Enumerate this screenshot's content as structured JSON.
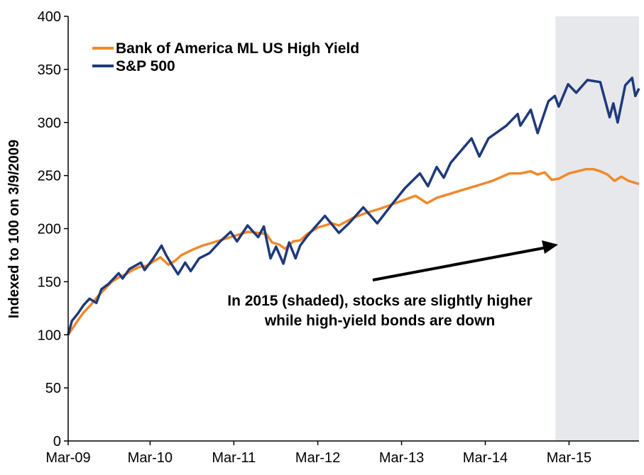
{
  "chart_data": {
    "type": "line",
    "title": "",
    "xlabel": "",
    "ylabel": "Indexed to 100 on 3/9/2009",
    "ylim": [
      0,
      400
    ],
    "yticks": [
      0,
      50,
      100,
      150,
      200,
      250,
      300,
      350,
      400
    ],
    "xlim": [
      "2009-03-09",
      "2015-12-31"
    ],
    "xtick_labels": [
      "Mar-09",
      "Mar-10",
      "Mar-11",
      "Mar-12",
      "Mar-13",
      "Mar-14",
      "Mar-15"
    ],
    "xtick_dates": [
      "2009-03-01",
      "2010-03-01",
      "2011-03-01",
      "2012-03-01",
      "2013-03-01",
      "2014-03-01",
      "2015-03-01"
    ],
    "grid": false,
    "legend_position": "top-left",
    "shaded_region": {
      "start": "2015-01-01",
      "end": "2015-12-31",
      "color": "#e7e8ec"
    },
    "annotation": {
      "lines": [
        "In 2015 (shaded), stocks are slightly higher",
        "while high-yield bonds are down"
      ]
    },
    "series": [
      {
        "name": "Bank of America ML US High Yield",
        "color": "#f0892b",
        "points": [
          [
            "2009-03-09",
            100
          ],
          [
            "2009-04-15",
            112
          ],
          [
            "2009-05-15",
            121
          ],
          [
            "2009-06-15",
            128
          ],
          [
            "2009-07-15",
            136
          ],
          [
            "2009-08-15",
            143
          ],
          [
            "2009-09-15",
            150
          ],
          [
            "2009-10-15",
            154
          ],
          [
            "2009-11-15",
            157
          ],
          [
            "2009-12-15",
            161
          ],
          [
            "2010-01-15",
            164
          ],
          [
            "2010-02-15",
            165
          ],
          [
            "2010-03-15",
            169
          ],
          [
            "2010-04-15",
            173
          ],
          [
            "2010-05-20",
            166
          ],
          [
            "2010-06-20",
            170
          ],
          [
            "2010-07-15",
            175
          ],
          [
            "2010-09-01",
            180
          ],
          [
            "2010-10-15",
            184
          ],
          [
            "2010-12-01",
            187
          ],
          [
            "2011-01-15",
            190
          ],
          [
            "2011-03-01",
            193
          ],
          [
            "2011-05-01",
            197
          ],
          [
            "2011-06-15",
            196
          ],
          [
            "2011-07-20",
            195
          ],
          [
            "2011-08-15",
            187
          ],
          [
            "2011-09-15",
            185
          ],
          [
            "2011-10-10",
            181
          ],
          [
            "2011-11-15",
            188
          ],
          [
            "2011-12-15",
            189
          ],
          [
            "2012-01-15",
            195
          ],
          [
            "2012-03-01",
            201
          ],
          [
            "2012-05-01",
            205
          ],
          [
            "2012-06-01",
            203
          ],
          [
            "2012-08-01",
            210
          ],
          [
            "2012-10-01",
            215
          ],
          [
            "2012-12-01",
            219
          ],
          [
            "2013-02-01",
            224
          ],
          [
            "2013-05-01",
            231
          ],
          [
            "2013-06-20",
            224
          ],
          [
            "2013-08-01",
            229
          ],
          [
            "2013-10-01",
            233
          ],
          [
            "2013-12-01",
            237
          ],
          [
            "2014-02-01",
            241
          ],
          [
            "2014-04-01",
            245
          ],
          [
            "2014-06-15",
            252
          ],
          [
            "2014-08-01",
            252
          ],
          [
            "2014-09-15",
            254
          ],
          [
            "2014-10-15",
            251
          ],
          [
            "2014-11-15",
            253
          ],
          [
            "2014-12-15",
            246
          ],
          [
            "2015-01-15",
            247
          ],
          [
            "2015-03-01",
            252
          ],
          [
            "2015-05-15",
            256
          ],
          [
            "2015-06-15",
            256
          ],
          [
            "2015-07-15",
            254
          ],
          [
            "2015-08-15",
            251
          ],
          [
            "2015-09-15",
            245
          ],
          [
            "2015-10-15",
            249
          ],
          [
            "2015-11-15",
            245
          ],
          [
            "2015-12-31",
            242
          ]
        ]
      },
      {
        "name": "S&P 500",
        "color": "#1e3a7a",
        "points": [
          [
            "2009-03-09",
            100
          ],
          [
            "2009-03-25",
            113
          ],
          [
            "2009-04-20",
            120
          ],
          [
            "2009-05-15",
            128
          ],
          [
            "2009-06-10",
            134
          ],
          [
            "2009-07-10",
            130
          ],
          [
            "2009-08-01",
            143
          ],
          [
            "2009-09-01",
            148
          ],
          [
            "2009-10-15",
            158
          ],
          [
            "2009-11-01",
            153
          ],
          [
            "2009-12-01",
            162
          ],
          [
            "2010-01-20",
            168
          ],
          [
            "2010-02-05",
            161
          ],
          [
            "2010-03-15",
            172
          ],
          [
            "2010-04-20",
            184
          ],
          [
            "2010-05-10",
            175
          ],
          [
            "2010-06-01",
            167
          ],
          [
            "2010-07-01",
            157
          ],
          [
            "2010-08-01",
            168
          ],
          [
            "2010-08-25",
            160
          ],
          [
            "2010-10-01",
            172
          ],
          [
            "2010-11-15",
            177
          ],
          [
            "2011-01-01",
            188
          ],
          [
            "2011-02-15",
            197
          ],
          [
            "2011-03-15",
            188
          ],
          [
            "2011-04-30",
            203
          ],
          [
            "2011-06-15",
            192
          ],
          [
            "2011-07-10",
            202
          ],
          [
            "2011-08-08",
            172
          ],
          [
            "2011-09-01",
            183
          ],
          [
            "2011-10-03",
            167
          ],
          [
            "2011-10-28",
            187
          ],
          [
            "2011-11-25",
            172
          ],
          [
            "2011-12-15",
            184
          ],
          [
            "2012-01-15",
            193
          ],
          [
            "2012-04-01",
            212
          ],
          [
            "2012-06-01",
            196
          ],
          [
            "2012-07-15",
            205
          ],
          [
            "2012-09-15",
            220
          ],
          [
            "2012-11-15",
            205
          ],
          [
            "2013-01-15",
            222
          ],
          [
            "2013-03-15",
            238
          ],
          [
            "2013-05-20",
            252
          ],
          [
            "2013-06-24",
            240
          ],
          [
            "2013-08-01",
            258
          ],
          [
            "2013-09-01",
            248
          ],
          [
            "2013-10-01",
            262
          ],
          [
            "2013-12-31",
            285
          ],
          [
            "2014-02-03",
            268
          ],
          [
            "2014-03-15",
            285
          ],
          [
            "2014-06-01",
            297
          ],
          [
            "2014-07-20",
            308
          ],
          [
            "2014-08-01",
            297
          ],
          [
            "2014-09-15",
            312
          ],
          [
            "2014-10-15",
            290
          ],
          [
            "2014-12-01",
            320
          ],
          [
            "2014-12-29",
            325
          ],
          [
            "2015-01-15",
            315
          ],
          [
            "2015-02-25",
            336
          ],
          [
            "2015-04-01",
            328
          ],
          [
            "2015-05-20",
            340
          ],
          [
            "2015-07-15",
            338
          ],
          [
            "2015-08-25",
            305
          ],
          [
            "2015-09-10",
            318
          ],
          [
            "2015-09-29",
            300
          ],
          [
            "2015-11-01",
            335
          ],
          [
            "2015-12-01",
            342
          ],
          [
            "2015-12-15",
            325
          ],
          [
            "2015-12-31",
            332
          ]
        ]
      }
    ]
  }
}
